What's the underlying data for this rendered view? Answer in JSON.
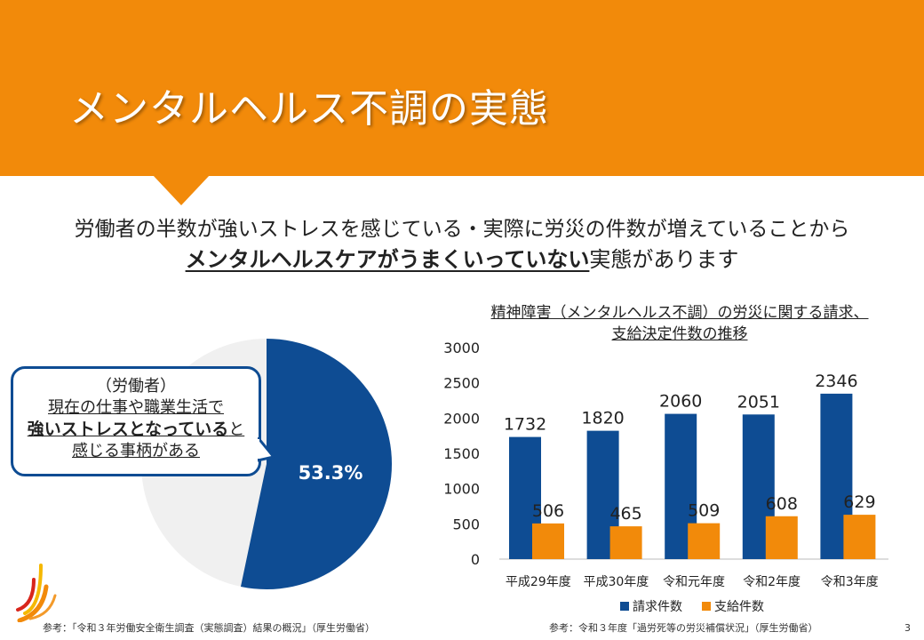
{
  "title": "メンタルヘルス不調の実態",
  "lead": {
    "line1": "労働者の半数が強いストレスを感じている・実際に労災の件数が増えていることから",
    "line2_emphasis": "メンタルヘルスケアがうまくいっていない",
    "line2_rest": "実態があります"
  },
  "callout": {
    "line1": "（労働者）",
    "line2": "現在の仕事や職業生活で",
    "line3_bold": "強いストレスとなっている",
    "line3_rest": "と",
    "line4": "感じる事柄がある"
  },
  "pie": {
    "percent_value": 53.3,
    "label": "53.3%",
    "colors": {
      "main": "#0e4c93",
      "rest": "#f0f0f0"
    }
  },
  "chart_title": {
    "line1": "精神障害（メンタルヘルス不調）の労災に関する請求、",
    "line2": "支給決定件数の推移"
  },
  "chart_data": {
    "type": "bar",
    "categories": [
      "平成29年度",
      "平成30年度",
      "令和元年度",
      "令和2年度",
      "令和3年度"
    ],
    "series": [
      {
        "name": "請求件数",
        "values": [
          1732,
          1820,
          2060,
          2051,
          2346
        ],
        "color": "#0e4c93"
      },
      {
        "name": "支給件数",
        "values": [
          506,
          465,
          509,
          608,
          629
        ],
        "color": "#f28a0a"
      }
    ],
    "yticks": [
      0,
      500,
      1000,
      1500,
      2000,
      2500,
      3000
    ],
    "ylim": [
      0,
      3000
    ],
    "legend_position": "bottom",
    "grid": false
  },
  "sources": {
    "left": "参考：「令和３年労働安全衛生調査（実態調査）結果の概況」（厚生労働省）",
    "right": "参考：令和３年度「過労死等の労災補償状況」（厚生労働省）"
  },
  "page_number": "3",
  "colors": {
    "accent": "#f28a0a",
    "navy": "#0e4c93"
  }
}
